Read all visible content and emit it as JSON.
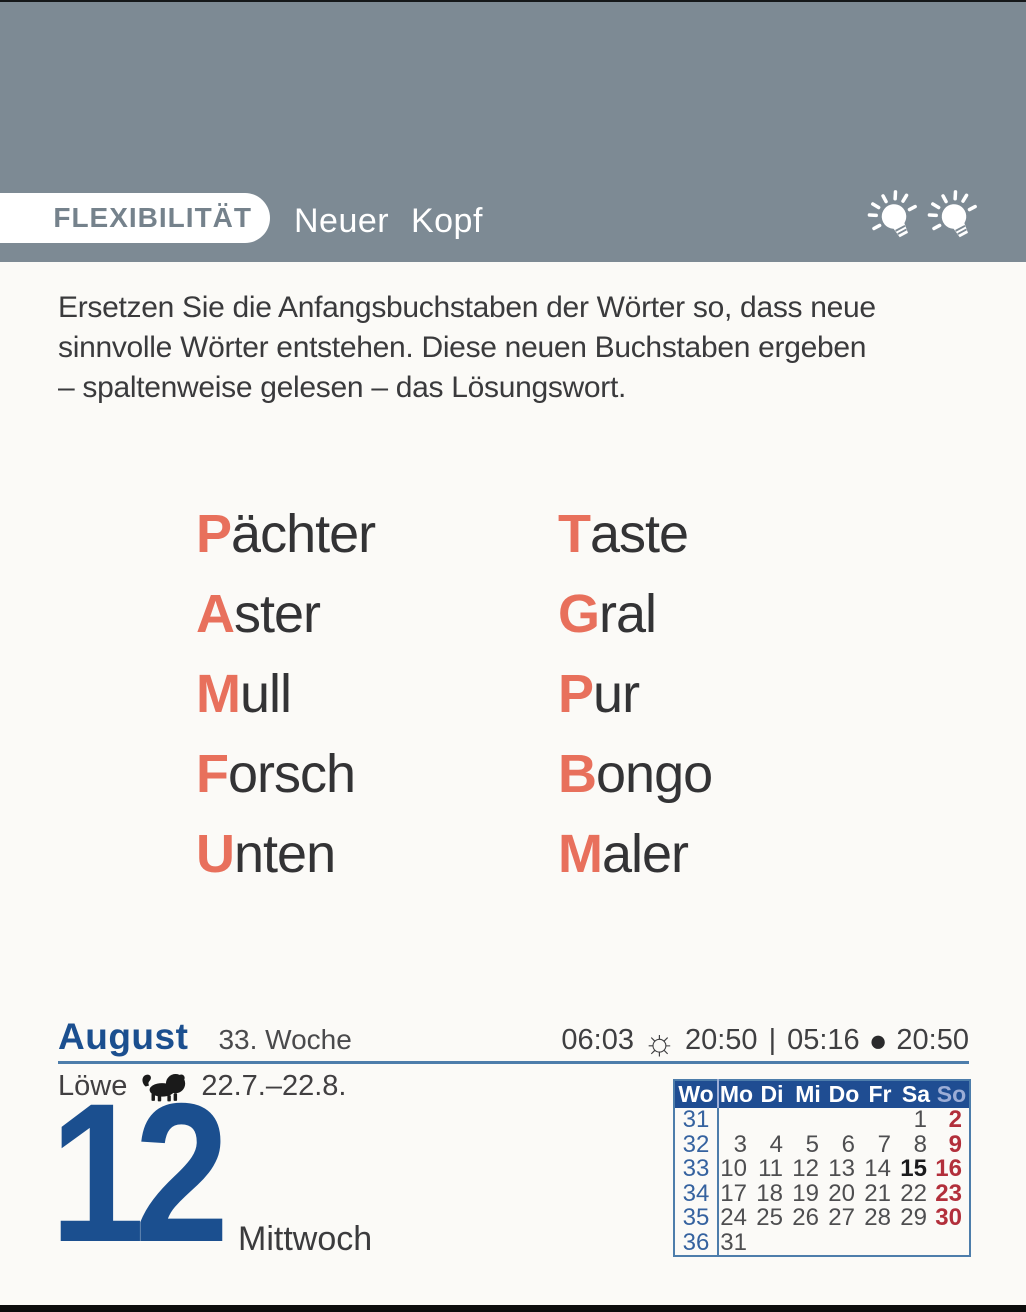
{
  "header": {
    "category": "FLEXIBILITÄT",
    "title": "Neuer Kopf",
    "difficulty_bulbs": 2,
    "band_color": "#7d8a94"
  },
  "intro": {
    "text": "Ersetzen Sie die Anfangsbuchstaben der Wörter so, dass neue\nsinnvolle Wörter entstehen. Diese neuen Buchstaben ergeben\n– spaltenweise gelesen – das Lösungswort."
  },
  "puzzle": {
    "accent_color": "#e8705c",
    "columns": [
      {
        "words": [
          {
            "initial": "P",
            "rest": "ächter"
          },
          {
            "initial": "A",
            "rest": "ster"
          },
          {
            "initial": "M",
            "rest": "ull"
          },
          {
            "initial": "F",
            "rest": "orsch"
          },
          {
            "initial": "U",
            "rest": "nten"
          }
        ]
      },
      {
        "words": [
          {
            "initial": "T",
            "rest": "aste"
          },
          {
            "initial": "G",
            "rest": "ral"
          },
          {
            "initial": "P",
            "rest": "ur"
          },
          {
            "initial": "B",
            "rest": "ongo"
          },
          {
            "initial": "M",
            "rest": "aler"
          }
        ]
      }
    ]
  },
  "footer": {
    "month": "August",
    "month_color": "#1b4f8f",
    "week_label": "33. Woche",
    "sunrise": "06:03",
    "sunset": "20:50",
    "moonrise": "05:16",
    "moonset": "20:50",
    "time_divider": "|",
    "zodiac_name": "Löwe",
    "zodiac_range": "22.7.–22.8.",
    "day_number": "12",
    "weekday": "Mittwoch"
  },
  "mini_calendar": {
    "headers": [
      "Wo",
      "Mo",
      "Di",
      "Mi",
      "Do",
      "Fr",
      "Sa",
      "So"
    ],
    "rows": [
      {
        "week": "31",
        "days": [
          "",
          "",
          "",
          "",
          "",
          "1",
          "2"
        ]
      },
      {
        "week": "32",
        "days": [
          "3",
          "4",
          "5",
          "6",
          "7",
          "8",
          "9"
        ]
      },
      {
        "week": "33",
        "days": [
          "10",
          "11",
          "12",
          "13",
          "14",
          "15",
          "16"
        ]
      },
      {
        "week": "34",
        "days": [
          "17",
          "18",
          "19",
          "20",
          "21",
          "22",
          "23"
        ]
      },
      {
        "week": "35",
        "days": [
          "24",
          "25",
          "26",
          "27",
          "28",
          "29",
          "30"
        ]
      },
      {
        "week": "36",
        "days": [
          "31",
          "",
          "",
          "",
          "",
          "",
          ""
        ]
      }
    ],
    "bold_days": [
      "15"
    ],
    "colors": {
      "header_bg": "#1f4d92",
      "sunday_red": "#b22f3b",
      "week_number_blue": "#35629f",
      "day_gray": "#4e4e50",
      "border_blue": "#4d7dab"
    }
  }
}
